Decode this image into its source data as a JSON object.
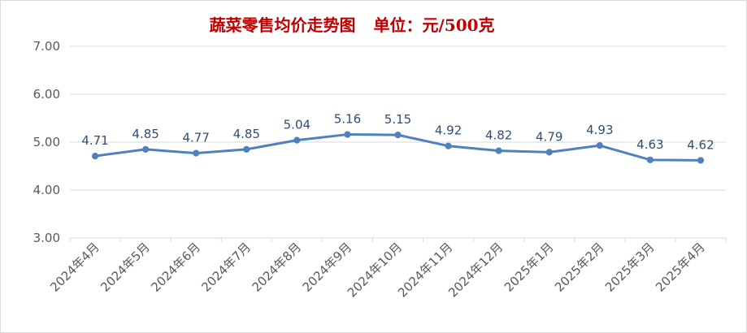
{
  "chart_data": {
    "type": "line",
    "title": "蔬菜零售均价走势图",
    "unit_label": "单位：元/500克",
    "categories": [
      "2024年4月",
      "2024年5月",
      "2024年6月",
      "2024年7月",
      "2024年8月",
      "2024年9月",
      "2024年10月",
      "2024年11月",
      "2024年12月",
      "2025年1月",
      "2025年2月",
      "2025年3月",
      "2025年4月"
    ],
    "series": [
      {
        "values": [
          4.71,
          4.85,
          4.77,
          4.85,
          5.04,
          5.16,
          5.15,
          4.92,
          4.82,
          4.79,
          4.93,
          4.63,
          4.62
        ]
      }
    ],
    "data_labels": [
      "4.71",
      "4.85",
      "4.77",
      "4.85",
      "5.04",
      "5.16",
      "5.15",
      "4.92",
      "4.82",
      "4.79",
      "4.93",
      "4.63",
      "4.62"
    ],
    "yticks": [
      "3.00",
      "4.00",
      "5.00",
      "6.00",
      "7.00"
    ],
    "ylim": [
      3,
      7
    ],
    "grid": true,
    "line_color": "#4f81bd",
    "title_color": "#c00000"
  }
}
